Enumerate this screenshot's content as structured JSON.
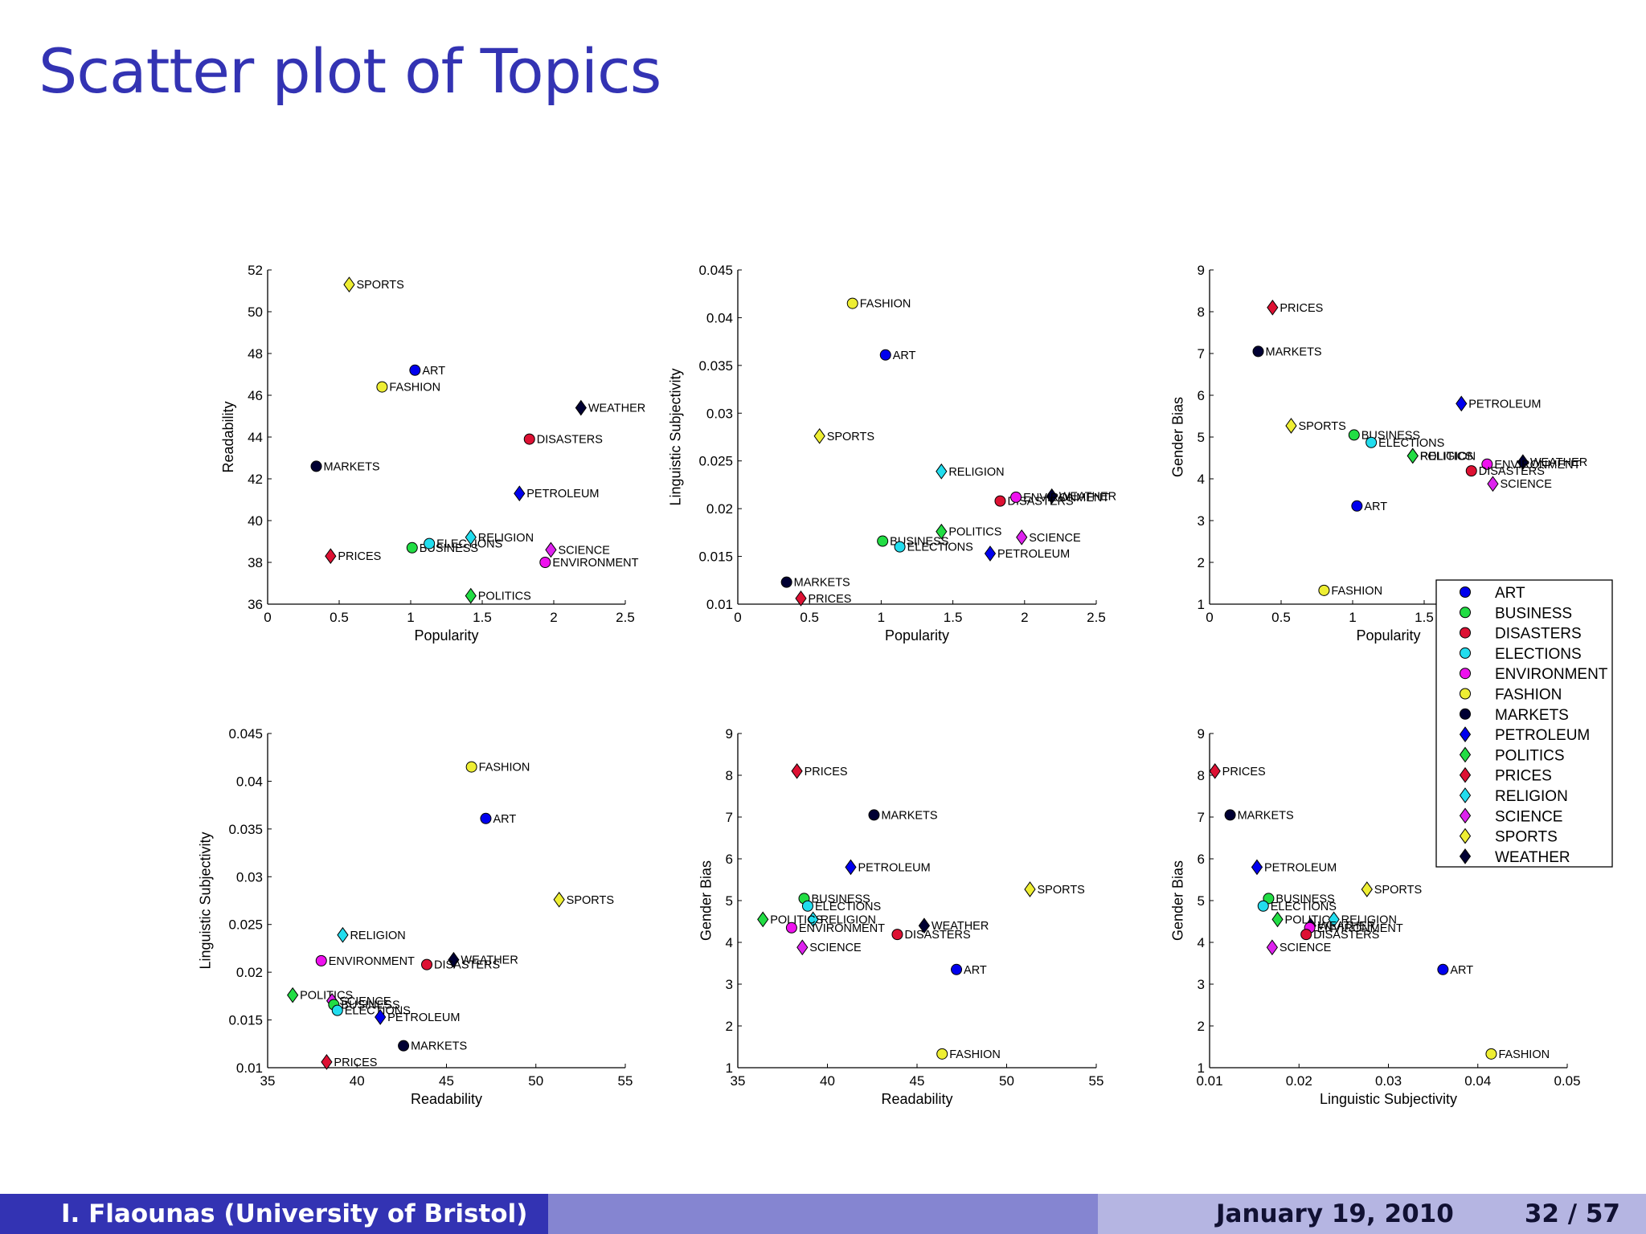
{
  "slide": {
    "title": "Scatter plot of Topics",
    "footer_author": "I. Flaounas  (University of Bristol)",
    "footer_date": "January 19, 2010",
    "footer_page": "32 / 57"
  },
  "legend": [
    {
      "label": "ART",
      "marker": "circle",
      "color": "#0000ee"
    },
    {
      "label": "BUSINESS",
      "marker": "circle",
      "color": "#22dd44"
    },
    {
      "label": "DISASTERS",
      "marker": "circle",
      "color": "#dd1133"
    },
    {
      "label": "ELECTIONS",
      "marker": "circle",
      "color": "#22ddee"
    },
    {
      "label": "ENVIRONMENT",
      "marker": "circle",
      "color": "#ee11ee"
    },
    {
      "label": "FASHION",
      "marker": "circle",
      "color": "#eeee33"
    },
    {
      "label": "MARKETS",
      "marker": "circle",
      "color": "#000033"
    },
    {
      "label": "PETROLEUM",
      "marker": "diamond",
      "color": "#0000ee"
    },
    {
      "label": "POLITICS",
      "marker": "diamond",
      "color": "#22dd44"
    },
    {
      "label": "PRICES",
      "marker": "diamond",
      "color": "#dd1133"
    },
    {
      "label": "RELIGION",
      "marker": "diamond",
      "color": "#22ddee"
    },
    {
      "label": "SCIENCE",
      "marker": "diamond",
      "color": "#dd22ee"
    },
    {
      "label": "SPORTS",
      "marker": "diamond",
      "color": "#eeee33"
    },
    {
      "label": "WEATHER",
      "marker": "diamond",
      "color": "#000033"
    }
  ],
  "chart_data": [
    {
      "type": "scatter",
      "xlabel": "Popularity",
      "ylabel": "Readability",
      "xlim": [
        0,
        2.5
      ],
      "ylim": [
        36,
        52
      ],
      "xticks": [
        "0",
        "0.5",
        "1",
        "1.5",
        "2",
        "2.5"
      ],
      "yticks": [
        "36",
        "38",
        "40",
        "42",
        "44",
        "46",
        "48",
        "50",
        "52"
      ],
      "points": [
        {
          "label": "SPORTS",
          "x": 0.57,
          "y": 51.3
        },
        {
          "label": "ART",
          "x": 1.03,
          "y": 47.2
        },
        {
          "label": "FASHION",
          "x": 0.8,
          "y": 46.4
        },
        {
          "label": "WEATHER",
          "x": 2.19,
          "y": 45.4
        },
        {
          "label": "DISASTERS",
          "x": 1.83,
          "y": 43.9
        },
        {
          "label": "MARKETS",
          "x": 0.34,
          "y": 42.6
        },
        {
          "label": "PETROLEUM",
          "x": 1.76,
          "y": 41.3
        },
        {
          "label": "BUSINESS",
          "x": 1.01,
          "y": 38.7
        },
        {
          "label": "ELECTIONS",
          "x": 1.13,
          "y": 38.9
        },
        {
          "label": "RELIGION",
          "x": 1.42,
          "y": 39.2
        },
        {
          "label": "PRICES",
          "x": 0.44,
          "y": 38.3
        },
        {
          "label": "SCIENCE",
          "x": 1.98,
          "y": 38.6
        },
        {
          "label": "ENVIRONMENT",
          "x": 1.94,
          "y": 38.0
        },
        {
          "label": "POLITICS",
          "x": 1.42,
          "y": 36.4
        }
      ]
    },
    {
      "type": "scatter",
      "xlabel": "Popularity",
      "ylabel": "Linguistic Subjectivity",
      "xlim": [
        0,
        2.5
      ],
      "ylim": [
        0.01,
        0.045
      ],
      "xticks": [
        "0",
        "0.5",
        "1",
        "1.5",
        "2",
        "2.5"
      ],
      "yticks": [
        "0.01",
        "0.015",
        "0.02",
        "0.025",
        "0.03",
        "0.035",
        "0.04",
        "0.045"
      ],
      "points": [
        {
          "label": "FASHION",
          "x": 0.8,
          "y": 0.0415
        },
        {
          "label": "ART",
          "x": 1.03,
          "y": 0.0361
        },
        {
          "label": "SPORTS",
          "x": 0.57,
          "y": 0.0276
        },
        {
          "label": "RELIGION",
          "x": 1.42,
          "y": 0.0239
        },
        {
          "label": "WEATHER",
          "x": 2.19,
          "y": 0.0213
        },
        {
          "label": "DISASTERS",
          "x": 1.83,
          "y": 0.0208
        },
        {
          "label": "ENVIRONMENT",
          "x": 1.94,
          "y": 0.0212
        },
        {
          "label": "POLITICS",
          "x": 1.42,
          "y": 0.0176
        },
        {
          "label": "SCIENCE",
          "x": 1.98,
          "y": 0.017
        },
        {
          "label": "BUSINESS",
          "x": 1.01,
          "y": 0.0166
        },
        {
          "label": "ELECTIONS",
          "x": 1.13,
          "y": 0.016
        },
        {
          "label": "PETROLEUM",
          "x": 1.76,
          "y": 0.0153
        },
        {
          "label": "MARKETS",
          "x": 0.34,
          "y": 0.0123
        },
        {
          "label": "PRICES",
          "x": 0.44,
          "y": 0.0106
        }
      ]
    },
    {
      "type": "scatter",
      "xlabel": "Popularity",
      "ylabel": "Gender Bias",
      "xlim": [
        0,
        2.5
      ],
      "ylim": [
        1,
        9
      ],
      "xticks": [
        "0",
        "0.5",
        "1",
        "1.5",
        "2",
        "2.5"
      ],
      "yticks": [
        "1",
        "2",
        "3",
        "4",
        "5",
        "6",
        "7",
        "8",
        "9"
      ],
      "points": [
        {
          "label": "PRICES",
          "x": 0.44,
          "y": 8.1
        },
        {
          "label": "MARKETS",
          "x": 0.34,
          "y": 7.05
        },
        {
          "label": "PETROLEUM",
          "x": 1.76,
          "y": 5.8
        },
        {
          "label": "SPORTS",
          "x": 0.57,
          "y": 5.27
        },
        {
          "label": "BUSINESS",
          "x": 1.01,
          "y": 5.05
        },
        {
          "label": "ELECTIONS",
          "x": 1.13,
          "y": 4.87
        },
        {
          "label": "RELIGION",
          "x": 1.42,
          "y": 4.55
        },
        {
          "label": "POLITICS",
          "x": 1.42,
          "y": 4.55
        },
        {
          "label": "WEATHER",
          "x": 2.19,
          "y": 4.4
        },
        {
          "label": "ENVIRONMENT",
          "x": 1.94,
          "y": 4.35
        },
        {
          "label": "DISASTERS",
          "x": 1.83,
          "y": 4.19
        },
        {
          "label": "SCIENCE",
          "x": 1.98,
          "y": 3.88
        },
        {
          "label": "ART",
          "x": 1.03,
          "y": 3.35
        },
        {
          "label": "FASHION",
          "x": 0.8,
          "y": 1.33
        }
      ]
    },
    {
      "type": "scatter",
      "xlabel": "Readability",
      "ylabel": "Linguistic Subjectivity",
      "xlim": [
        35,
        55
      ],
      "ylim": [
        0.01,
        0.045
      ],
      "xticks": [
        "35",
        "40",
        "45",
        "50",
        "55"
      ],
      "yticks": [
        "0.01",
        "0.015",
        "0.02",
        "0.025",
        "0.03",
        "0.035",
        "0.04",
        "0.045"
      ],
      "points": [
        {
          "label": "FASHION",
          "x": 46.4,
          "y": 0.0415
        },
        {
          "label": "ART",
          "x": 47.2,
          "y": 0.0361
        },
        {
          "label": "SPORTS",
          "x": 51.3,
          "y": 0.0276
        },
        {
          "label": "RELIGION",
          "x": 39.2,
          "y": 0.0239
        },
        {
          "label": "WEATHER",
          "x": 45.4,
          "y": 0.0213
        },
        {
          "label": "ENVIRONMENT",
          "x": 38.0,
          "y": 0.0212
        },
        {
          "label": "DISASTERS",
          "x": 43.9,
          "y": 0.0208
        },
        {
          "label": "POLITICS",
          "x": 36.4,
          "y": 0.0176
        },
        {
          "label": "SCIENCE",
          "x": 38.6,
          "y": 0.017
        },
        {
          "label": "BUSINESS",
          "x": 38.7,
          "y": 0.0166
        },
        {
          "label": "ELECTIONS",
          "x": 38.9,
          "y": 0.016
        },
        {
          "label": "PETROLEUM",
          "x": 41.3,
          "y": 0.0153
        },
        {
          "label": "MARKETS",
          "x": 42.6,
          "y": 0.0123
        },
        {
          "label": "PRICES",
          "x": 38.3,
          "y": 0.0106
        }
      ]
    },
    {
      "type": "scatter",
      "xlabel": "Readability",
      "ylabel": "Gender Bias",
      "xlim": [
        35,
        55
      ],
      "ylim": [
        1,
        9
      ],
      "xticks": [
        "35",
        "40",
        "45",
        "50",
        "55"
      ],
      "yticks": [
        "1",
        "2",
        "3",
        "4",
        "5",
        "6",
        "7",
        "8",
        "9"
      ],
      "points": [
        {
          "label": "PRICES",
          "x": 38.3,
          "y": 8.1
        },
        {
          "label": "MARKETS",
          "x": 42.6,
          "y": 7.05
        },
        {
          "label": "PETROLEUM",
          "x": 41.3,
          "y": 5.8
        },
        {
          "label": "SPORTS",
          "x": 51.3,
          "y": 5.27
        },
        {
          "label": "BUSINESS",
          "x": 38.7,
          "y": 5.05
        },
        {
          "label": "ELECTIONS",
          "x": 38.9,
          "y": 4.87
        },
        {
          "label": "RELIGION",
          "x": 39.2,
          "y": 4.55
        },
        {
          "label": "POLITICS",
          "x": 36.4,
          "y": 4.55
        },
        {
          "label": "ENVIRONMENT",
          "x": 38.0,
          "y": 4.35
        },
        {
          "label": "WEATHER",
          "x": 45.4,
          "y": 4.4
        },
        {
          "label": "DISASTERS",
          "x": 43.9,
          "y": 4.19
        },
        {
          "label": "SCIENCE",
          "x": 38.6,
          "y": 3.88
        },
        {
          "label": "ART",
          "x": 47.2,
          "y": 3.35
        },
        {
          "label": "FASHION",
          "x": 46.4,
          "y": 1.33
        }
      ]
    },
    {
      "type": "scatter",
      "xlabel": "Linguistic Subjectivity",
      "ylabel": "Gender Bias",
      "xlim": [
        0.01,
        0.05
      ],
      "ylim": [
        1,
        9
      ],
      "xticks": [
        "0.01",
        "0.02",
        "0.03",
        "0.04",
        "0.05"
      ],
      "yticks": [
        "1",
        "2",
        "3",
        "4",
        "5",
        "6",
        "7",
        "8",
        "9"
      ],
      "points": [
        {
          "label": "PRICES",
          "x": 0.0106,
          "y": 8.1
        },
        {
          "label": "MARKETS",
          "x": 0.0123,
          "y": 7.05
        },
        {
          "label": "PETROLEUM",
          "x": 0.0153,
          "y": 5.8
        },
        {
          "label": "SPORTS",
          "x": 0.0276,
          "y": 5.27
        },
        {
          "label": "BUSINESS",
          "x": 0.0166,
          "y": 5.05
        },
        {
          "label": "ELECTIONS",
          "x": 0.016,
          "y": 4.87
        },
        {
          "label": "POLITICS",
          "x": 0.0176,
          "y": 4.55
        },
        {
          "label": "RELIGION",
          "x": 0.0239,
          "y": 4.55
        },
        {
          "label": "WEATHER",
          "x": 0.0213,
          "y": 4.4
        },
        {
          "label": "ENVIRONMENT",
          "x": 0.0212,
          "y": 4.35
        },
        {
          "label": "DISASTERS",
          "x": 0.0208,
          "y": 4.19
        },
        {
          "label": "SCIENCE",
          "x": 0.017,
          "y": 3.88
        },
        {
          "label": "ART",
          "x": 0.0361,
          "y": 3.35
        },
        {
          "label": "FASHION",
          "x": 0.0415,
          "y": 1.33
        }
      ]
    }
  ]
}
